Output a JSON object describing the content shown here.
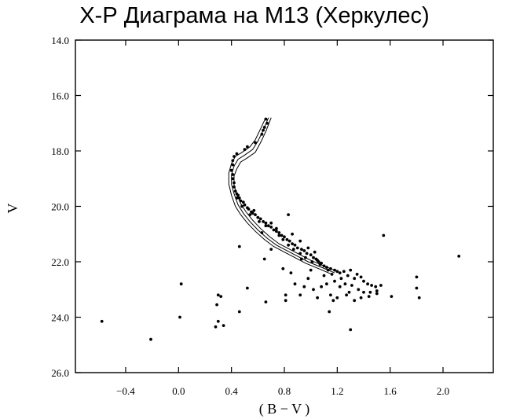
{
  "title": "Х-Р Диаграма на M13 (Херкулес)",
  "chart_data": {
    "type": "scatter",
    "title": "Х-Р Диаграма на M13 (Херкулес)",
    "xlabel": "( B − V )",
    "ylabel": "V",
    "xlim": [
      -0.78,
      2.38
    ],
    "ylim": [
      26.0,
      14.0
    ],
    "y_inverted": true,
    "grid": false,
    "x_ticks": [
      -0.4,
      0.0,
      0.4,
      0.8,
      1.2,
      1.6,
      2.0
    ],
    "x_tick_labels": [
      "−0.4",
      "0.0",
      "0.4",
      "0.8",
      "1.2",
      "1.6",
      "2.0"
    ],
    "y_ticks": [
      14.0,
      16.0,
      18.0,
      20.0,
      22.0,
      24.0,
      26.0
    ],
    "y_tick_labels": [
      "14.0",
      "16.0",
      "18.0",
      "20.0",
      "22.0",
      "24.0",
      "26.0"
    ],
    "isochrones": [
      {
        "x": [
          0.66,
          0.62,
          0.58,
          0.54,
          0.48,
          0.43,
          0.4,
          0.38,
          0.38,
          0.4,
          0.43,
          0.47,
          0.52,
          0.58,
          0.65,
          0.72,
          0.8,
          0.88,
          0.96,
          1.06,
          1.16
        ],
        "y": [
          16.8,
          17.2,
          17.6,
          17.85,
          18.05,
          18.2,
          18.45,
          18.8,
          19.2,
          19.6,
          20.0,
          20.3,
          20.6,
          20.9,
          21.2,
          21.45,
          21.65,
          21.85,
          22.05,
          22.25,
          22.45
        ]
      },
      {
        "x": [
          0.68,
          0.64,
          0.6,
          0.56,
          0.5,
          0.45,
          0.42,
          0.4,
          0.4,
          0.42,
          0.45,
          0.49,
          0.54,
          0.6,
          0.67,
          0.74,
          0.82,
          0.9,
          0.98,
          1.08,
          1.18
        ],
        "y": [
          16.8,
          17.25,
          17.65,
          17.95,
          18.15,
          18.3,
          18.55,
          18.85,
          19.2,
          19.55,
          19.95,
          20.25,
          20.55,
          20.85,
          21.15,
          21.4,
          21.6,
          21.8,
          22.0,
          22.2,
          22.4
        ]
      },
      {
        "x": [
          0.7,
          0.66,
          0.62,
          0.58,
          0.52,
          0.47,
          0.44,
          0.42,
          0.42,
          0.44,
          0.47,
          0.51,
          0.56,
          0.62,
          0.69,
          0.76,
          0.84,
          0.92,
          1.0,
          1.1,
          1.2
        ],
        "y": [
          16.8,
          17.3,
          17.7,
          18.05,
          18.25,
          18.4,
          18.65,
          18.9,
          19.25,
          19.55,
          19.9,
          20.2,
          20.5,
          20.8,
          21.1,
          21.35,
          21.55,
          21.75,
          21.95,
          22.15,
          22.35
        ]
      }
    ],
    "points": [
      [
        0.66,
        16.85
      ],
      [
        0.67,
        17.0
      ],
      [
        0.65,
        17.15
      ],
      [
        0.64,
        17.25
      ],
      [
        0.63,
        17.4
      ],
      [
        0.58,
        17.7
      ],
      [
        0.52,
        17.85
      ],
      [
        0.5,
        17.95
      ],
      [
        0.44,
        18.1
      ],
      [
        0.42,
        18.2
      ],
      [
        0.41,
        18.35
      ],
      [
        0.41,
        18.5
      ],
      [
        0.4,
        18.7
      ],
      [
        0.41,
        18.85
      ],
      [
        0.41,
        19.0
      ],
      [
        0.42,
        19.15
      ],
      [
        0.42,
        19.3
      ],
      [
        0.43,
        19.45
      ],
      [
        0.44,
        19.55
      ],
      [
        0.45,
        19.6
      ],
      [
        0.46,
        19.7
      ],
      [
        0.47,
        19.8
      ],
      [
        0.49,
        19.85
      ],
      [
        0.5,
        19.95
      ],
      [
        0.52,
        20.05
      ],
      [
        0.53,
        20.1
      ],
      [
        0.55,
        20.2
      ],
      [
        0.56,
        20.25
      ],
      [
        0.58,
        20.3
      ],
      [
        0.6,
        20.4
      ],
      [
        0.62,
        20.45
      ],
      [
        0.64,
        20.55
      ],
      [
        0.66,
        20.6
      ],
      [
        0.68,
        20.7
      ],
      [
        0.7,
        20.75
      ],
      [
        0.72,
        20.85
      ],
      [
        0.74,
        20.9
      ],
      [
        0.76,
        20.95
      ],
      [
        0.78,
        21.05
      ],
      [
        0.8,
        21.1
      ],
      [
        0.82,
        21.2
      ],
      [
        0.84,
        21.25
      ],
      [
        0.86,
        21.35
      ],
      [
        0.88,
        21.4
      ],
      [
        0.9,
        21.5
      ],
      [
        0.93,
        21.55
      ],
      [
        0.95,
        21.6
      ],
      [
        0.97,
        21.7
      ],
      [
        1.0,
        21.75
      ],
      [
        1.02,
        21.85
      ],
      [
        1.04,
        21.9
      ],
      [
        1.06,
        22.0
      ],
      [
        1.08,
        22.05
      ],
      [
        1.1,
        22.15
      ],
      [
        1.12,
        22.2
      ],
      [
        1.15,
        22.25
      ],
      [
        1.18,
        22.3
      ],
      [
        1.2,
        22.35
      ],
      [
        0.44,
        19.7
      ],
      [
        0.48,
        20.0
      ],
      [
        0.54,
        20.3
      ],
      [
        0.57,
        20.15
      ],
      [
        0.61,
        20.55
      ],
      [
        0.66,
        20.7
      ],
      [
        0.7,
        20.6
      ],
      [
        0.74,
        20.8
      ],
      [
        0.79,
        21.2
      ],
      [
        0.83,
        21.4
      ],
      [
        0.87,
        21.55
      ],
      [
        0.92,
        21.7
      ],
      [
        0.96,
        21.85
      ],
      [
        1.01,
        22.0
      ],
      [
        1.05,
        21.95
      ],
      [
        0.86,
        21.0
      ],
      [
        0.92,
        21.25
      ],
      [
        0.98,
        21.5
      ],
      [
        1.03,
        21.65
      ],
      [
        1.07,
        22.1
      ],
      [
        1.13,
        22.3
      ],
      [
        1.16,
        22.45
      ],
      [
        1.22,
        22.4
      ],
      [
        1.25,
        22.35
      ],
      [
        1.28,
        22.5
      ],
      [
        1.3,
        22.3
      ],
      [
        1.33,
        22.6
      ],
      [
        1.35,
        22.45
      ],
      [
        1.38,
        22.55
      ],
      [
        1.4,
        22.7
      ],
      [
        1.43,
        22.8
      ],
      [
        1.46,
        22.85
      ],
      [
        1.49,
        22.9
      ],
      [
        1.23,
        22.6
      ],
      [
        1.18,
        22.7
      ],
      [
        1.26,
        22.8
      ],
      [
        1.31,
        22.85
      ],
      [
        1.36,
        23.0
      ],
      [
        1.4,
        23.1
      ],
      [
        1.45,
        23.1
      ],
      [
        1.5,
        23.05
      ],
      [
        1.12,
        22.8
      ],
      [
        1.08,
        22.9
      ],
      [
        1.02,
        23.0
      ],
      [
        0.98,
        22.6
      ],
      [
        0.95,
        22.9
      ],
      [
        1.05,
        23.3
      ],
      [
        1.15,
        23.2
      ],
      [
        1.2,
        23.3
      ],
      [
        1.27,
        23.2
      ],
      [
        1.33,
        23.4
      ],
      [
        0.92,
        23.2
      ],
      [
        0.88,
        22.8
      ],
      [
        0.85,
        22.4
      ],
      [
        0.93,
        21.9
      ],
      [
        1.0,
        22.3
      ],
      [
        1.1,
        22.5
      ],
      [
        1.22,
        22.9
      ],
      [
        1.29,
        23.1
      ],
      [
        1.38,
        23.3
      ],
      [
        1.44,
        23.25
      ],
      [
        1.17,
        23.4
      ],
      [
        1.14,
        23.8
      ],
      [
        1.3,
        24.45
      ],
      [
        1.55,
        21.05
      ],
      [
        0.83,
        20.3
      ],
      [
        0.76,
        21.05
      ],
      [
        0.7,
        21.55
      ],
      [
        0.65,
        21.9
      ],
      [
        0.63,
        20.95
      ],
      [
        0.46,
        21.45
      ],
      [
        0.79,
        22.25
      ],
      [
        0.81,
        23.2
      ],
      [
        0.81,
        23.4
      ],
      [
        0.66,
        23.45
      ],
      [
        0.52,
        22.95
      ],
      [
        0.46,
        23.8
      ],
      [
        0.3,
        23.2
      ],
      [
        0.29,
        23.55
      ],
      [
        0.32,
        23.25
      ],
      [
        0.3,
        24.15
      ],
      [
        0.34,
        24.3
      ],
      [
        0.28,
        24.35
      ],
      [
        0.02,
        22.8
      ],
      [
        0.01,
        24.0
      ],
      [
        -0.21,
        24.8
      ],
      [
        -0.58,
        24.15
      ],
      [
        1.8,
        22.55
      ],
      [
        1.8,
        22.95
      ],
      [
        1.82,
        23.3
      ],
      [
        1.61,
        23.25
      ],
      [
        2.12,
        21.8
      ],
      [
        1.53,
        22.85
      ],
      [
        1.5,
        23.15
      ]
    ]
  }
}
